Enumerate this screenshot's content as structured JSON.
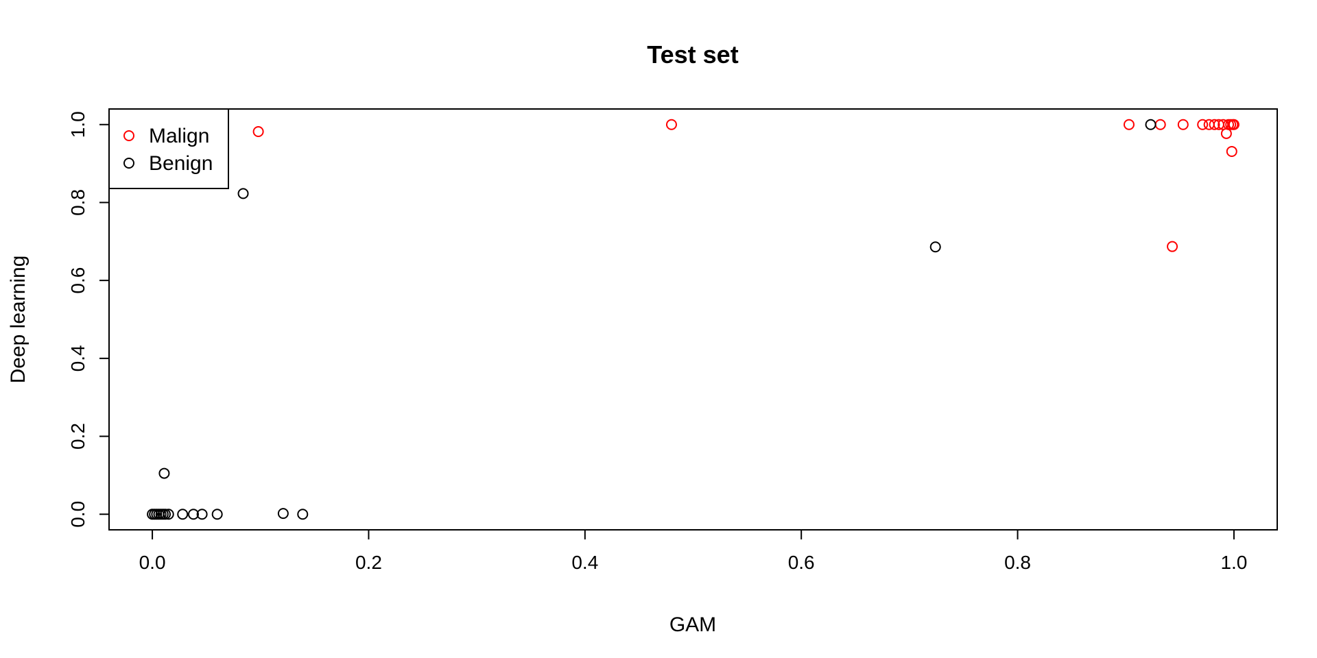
{
  "chart_data": {
    "type": "scatter",
    "title": "Test set",
    "xlabel": "GAM",
    "ylabel": "Deep learning",
    "xlim": [
      -0.04,
      1.04
    ],
    "ylim": [
      -0.04,
      1.04
    ],
    "xticks": [
      "0.0",
      "0.2",
      "0.4",
      "0.6",
      "0.8",
      "1.0"
    ],
    "yticks": [
      "0.0",
      "0.2",
      "0.4",
      "0.6",
      "0.8",
      "1.0"
    ],
    "grid": false,
    "legend_position": "top-left",
    "series": [
      {
        "name": "Malign",
        "color": "#ff0000",
        "points": [
          [
            0.098,
            0.982
          ],
          [
            0.48,
            1.0
          ],
          [
            0.903,
            1.0
          ],
          [
            0.932,
            1.0
          ],
          [
            0.943,
            0.687
          ],
          [
            0.953,
            1.0
          ],
          [
            0.971,
            1.0
          ],
          [
            0.977,
            1.0
          ],
          [
            0.982,
            1.0
          ],
          [
            0.986,
            1.0
          ],
          [
            0.99,
            1.0
          ],
          [
            0.993,
            0.977
          ],
          [
            0.995,
            1.0
          ],
          [
            0.997,
            1.0
          ],
          [
            0.998,
            0.931
          ],
          [
            0.999,
            1.0
          ],
          [
            1.0,
            1.0
          ]
        ]
      },
      {
        "name": "Benign",
        "color": "#000000",
        "points": [
          [
            0.0,
            0.0
          ],
          [
            0.002,
            0.0
          ],
          [
            0.004,
            0.0
          ],
          [
            0.006,
            0.0
          ],
          [
            0.008,
            0.0
          ],
          [
            0.01,
            0.0
          ],
          [
            0.012,
            0.0
          ],
          [
            0.015,
            0.0
          ],
          [
            0.028,
            0.0
          ],
          [
            0.038,
            0.0
          ],
          [
            0.046,
            0.0
          ],
          [
            0.06,
            0.0
          ],
          [
            0.011,
            0.105
          ],
          [
            0.084,
            0.823
          ],
          [
            0.121,
            0.002
          ],
          [
            0.139,
            0.0
          ],
          [
            0.724,
            0.686
          ],
          [
            0.923,
            1.0
          ]
        ]
      }
    ]
  }
}
